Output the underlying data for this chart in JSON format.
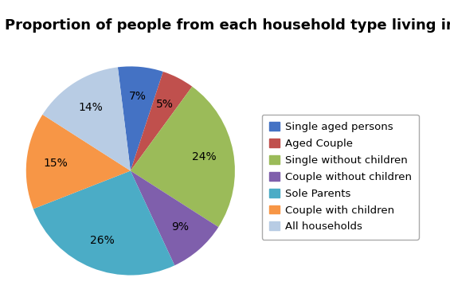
{
  "title": "Proportion of people from each household type living in proverty",
  "labels": [
    "Single aged persons",
    "Aged Couple",
    "Single without children",
    "Couple without children",
    "Sole Parents",
    "Couple with children",
    "All households"
  ],
  "values": [
    7,
    5,
    24,
    9,
    26,
    15,
    14
  ],
  "colors": [
    "#4472C4",
    "#C0504D",
    "#9BBB59",
    "#7F5FAC",
    "#4BACC6",
    "#F79646",
    "#B8CCE4"
  ],
  "title_fontsize": 13,
  "label_fontsize": 10,
  "legend_fontsize": 9.5,
  "background_color": "#FFFFFF",
  "startangle": 97
}
